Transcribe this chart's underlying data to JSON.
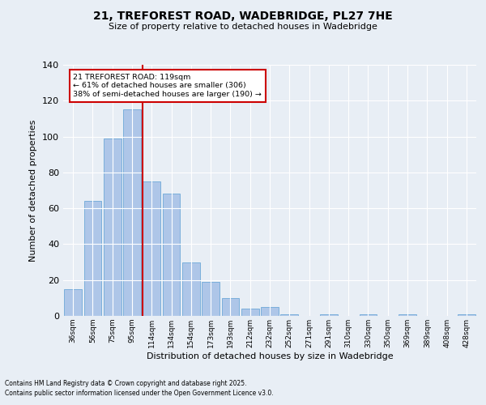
{
  "title": "21, TREFOREST ROAD, WADEBRIDGE, PL27 7HE",
  "subtitle": "Size of property relative to detached houses in Wadebridge",
  "xlabel": "Distribution of detached houses by size in Wadebridge",
  "ylabel": "Number of detached properties",
  "categories": [
    "36sqm",
    "56sqm",
    "75sqm",
    "95sqm",
    "114sqm",
    "134sqm",
    "154sqm",
    "173sqm",
    "193sqm",
    "212sqm",
    "232sqm",
    "252sqm",
    "271sqm",
    "291sqm",
    "310sqm",
    "330sqm",
    "350sqm",
    "369sqm",
    "389sqm",
    "408sqm",
    "428sqm"
  ],
  "values": [
    15,
    64,
    99,
    115,
    75,
    68,
    30,
    19,
    10,
    4,
    5,
    1,
    0,
    1,
    0,
    1,
    0,
    1,
    0,
    0,
    1
  ],
  "bar_color": "#aec6e8",
  "bar_edgecolor": "#5a9fd4",
  "property_line_x": 4,
  "property_line_label": "21 TREFOREST ROAD: 119sqm",
  "annotation_line1": "← 61% of detached houses are smaller (306)",
  "annotation_line2": "38% of semi-detached houses are larger (190) →",
  "red_line_color": "#cc0000",
  "box_facecolor": "#ffffff",
  "box_edgecolor": "#cc0000",
  "ylim": [
    0,
    140
  ],
  "yticks": [
    0,
    20,
    40,
    60,
    80,
    100,
    120,
    140
  ],
  "background_color": "#e8eef5",
  "grid_color": "#ffffff",
  "footnote1": "Contains HM Land Registry data © Crown copyright and database right 2025.",
  "footnote2": "Contains public sector information licensed under the Open Government Licence v3.0."
}
